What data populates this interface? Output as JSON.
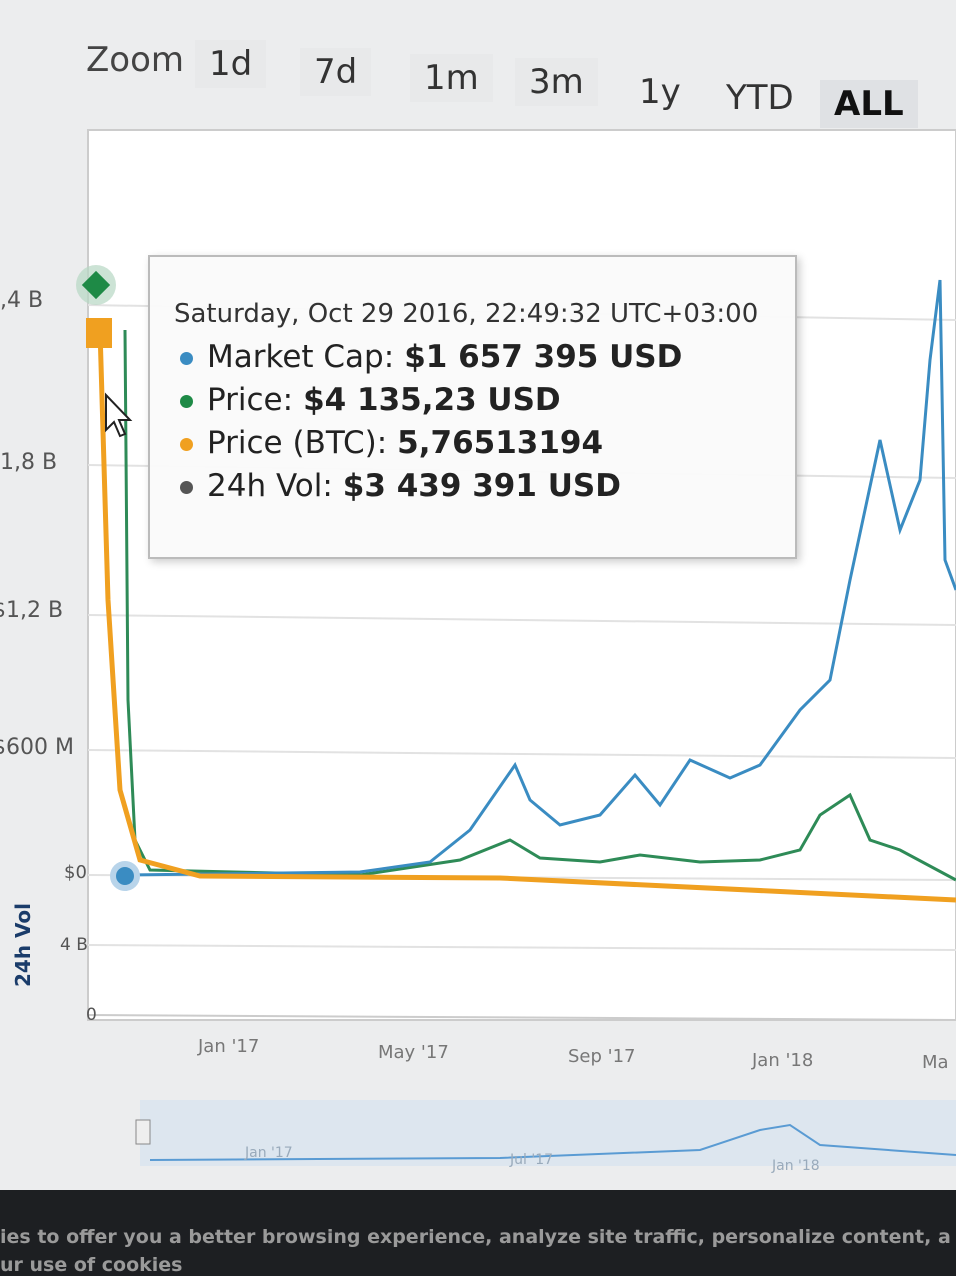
{
  "zoom": {
    "label": "Zoom",
    "buttons": [
      "1d",
      "7d",
      "1m",
      "3m",
      "1y",
      "YTD",
      "ALL"
    ]
  },
  "y_axis_labels": [
    ",4 B",
    "1,8 B",
    "$1,2 B",
    "$600 M",
    "$0"
  ],
  "volume_axis": {
    "title": "24h Vol",
    "labels": [
      "4 B",
      "0"
    ]
  },
  "tooltip": {
    "date": "Saturday, Oct 29 2016, 22:49:32 UTC+03:00",
    "items": [
      {
        "label": "Market Cap:",
        "value": "$1 657 395 USD"
      },
      {
        "label": "Price:",
        "value": "$4 135,23 USD"
      },
      {
        "label": "Price (BTC):",
        "value": "5,76513194"
      },
      {
        "label": "24h Vol:",
        "value": "$3 439 391 USD"
      }
    ]
  },
  "x_axis_labels": [
    "Jan '17",
    "May '17",
    "Sep '17",
    "Jan '18",
    "Ma"
  ],
  "navigator_labels": [
    "Jan '17",
    "Jul '17",
    "Jan '18"
  ],
  "cookie_banner": [
    "ies to offer you a better browsing experience, analyze site traffic, personalize content, a",
    "ur use of cookies"
  ]
}
